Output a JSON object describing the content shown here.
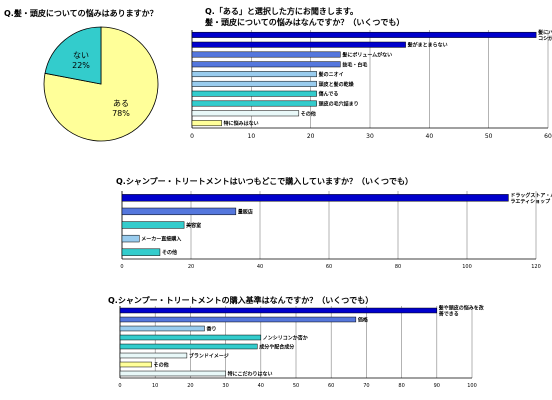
{
  "chart_data": [
    {
      "type": "pie",
      "title": "Q.髪・頭皮についての悩みはありますか？",
      "slices": [
        {
          "label": "ある",
          "value": 78,
          "value_label": "78%"
        },
        {
          "label": "ない",
          "value": 22,
          "value_label": "22%"
        }
      ],
      "colors": [
        "#ffff99",
        "#33cccc"
      ]
    },
    {
      "type": "bar",
      "orientation": "horizontal",
      "title": "Q.「ある」と選択した方にお聞きします。",
      "subtitle": "髪・頭皮についての悩みはなんですか？（いくつでも）",
      "categories": [
        "髪にハリ・艶・コシがない",
        "髪がまとまらない",
        "髪にボリュームがない",
        "抜毛・白毛",
        "髪のニオイ",
        "頭皮と髪の乾燥",
        "傷んでる",
        "頭皮の毛穴詰まり",
        "その他",
        "特に悩みはない"
      ],
      "values": [
        58,
        36,
        25,
        25,
        21,
        21,
        21,
        21,
        18,
        5
      ],
      "colors": [
        "#0000cc",
        "#0000cc",
        "#5577dd",
        "#5577dd",
        "#99ccee",
        "#99ccee",
        "#33cccc",
        "#33cccc",
        "#e8f8f8",
        "#ffff99"
      ],
      "xlim": [
        0,
        60
      ],
      "xticks": [
        "0",
        "10",
        "20",
        "30",
        "40",
        "50",
        "60"
      ]
    },
    {
      "type": "bar",
      "orientation": "horizontal",
      "title": "Q.シャンプー・トリートメントはいつもどこで購入していますか？（いくつでも）",
      "categories": [
        "ドラッグストア・バラエティショップ",
        "量販店",
        "美容室",
        "メーカー直接購入",
        "その他"
      ],
      "values": [
        112,
        33,
        18,
        5,
        11
      ],
      "colors": [
        "#0000cc",
        "#5577dd",
        "#33cccc",
        "#99ccee",
        "#33cccc"
      ],
      "xlim": [
        0,
        120
      ],
      "xticks": [
        "0",
        "20",
        "40",
        "60",
        "80",
        "100",
        "120"
      ]
    },
    {
      "type": "bar",
      "orientation": "horizontal",
      "title": "Q.シャンプー・トリートメントの購入基準はなんですか？（いくつでも）",
      "categories": [
        "髪や頭皮の悩みを改善できる",
        "価格",
        "香り",
        "ノンシリコンか否か",
        "成分や配合成分",
        "ブランドイメージ",
        "その他",
        "特にこだわりはない"
      ],
      "values": [
        90,
        67,
        24,
        40,
        39,
        19,
        9,
        30
      ],
      "colors": [
        "#0000cc",
        "#5577dd",
        "#99ccee",
        "#33cccc",
        "#33cccc",
        "#e8f8f8",
        "#ffff99",
        "#e8f8f8"
      ],
      "xlim": [
        0,
        100
      ],
      "xticks": [
        "0",
        "10",
        "20",
        "30",
        "40",
        "50",
        "60",
        "70",
        "80",
        "90",
        "100"
      ]
    }
  ]
}
